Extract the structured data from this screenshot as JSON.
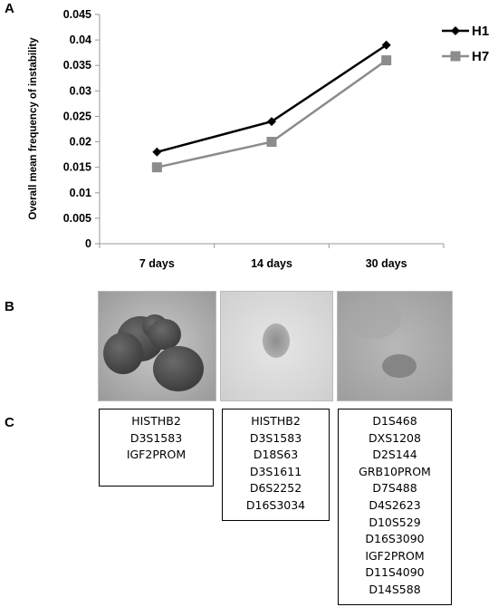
{
  "panels": {
    "a": "A",
    "b": "B",
    "c": "C"
  },
  "chart_data": {
    "type": "line",
    "categories": [
      "7 days",
      "14 days",
      "30 days"
    ],
    "series": [
      {
        "name": "H1",
        "values": [
          0.018,
          0.024,
          0.039
        ],
        "color": "#000000",
        "marker": "diamond"
      },
      {
        "name": "H7",
        "values": [
          0.015,
          0.02,
          0.036
        ],
        "color": "#8c8c8c",
        "marker": "square"
      }
    ],
    "ylabel": "Overall mean frequency of instability",
    "xlabel": "",
    "ylim": [
      0,
      0.045
    ],
    "yticks": [
      "0",
      "0.005",
      "0.01",
      "0.015",
      "0.02",
      "0.025",
      "0.03",
      "0.035",
      "0.04",
      "0.045"
    ],
    "grid": false,
    "legend": "right"
  },
  "images": [
    {
      "content": "cell-colonies-photo"
    },
    {
      "content": "single-colony-photo"
    },
    {
      "content": "faint-colony-photo"
    }
  ],
  "marker_lists": [
    {
      "items": [
        "HISTHB2",
        "D3S1583",
        "IGF2PROM"
      ]
    },
    {
      "items": [
        "HISTHB2",
        "D3S1583",
        "D18S63",
        "D3S1611",
        "D6S2252",
        "D16S3034"
      ]
    },
    {
      "items": [
        "D1S468",
        "DXS1208",
        "D2S144",
        "GRB10PROM",
        "D7S488",
        "D4S2623",
        "D10S529",
        "D16S3090",
        "IGF2PROM",
        "D11S4090",
        "D14S588"
      ]
    }
  ]
}
